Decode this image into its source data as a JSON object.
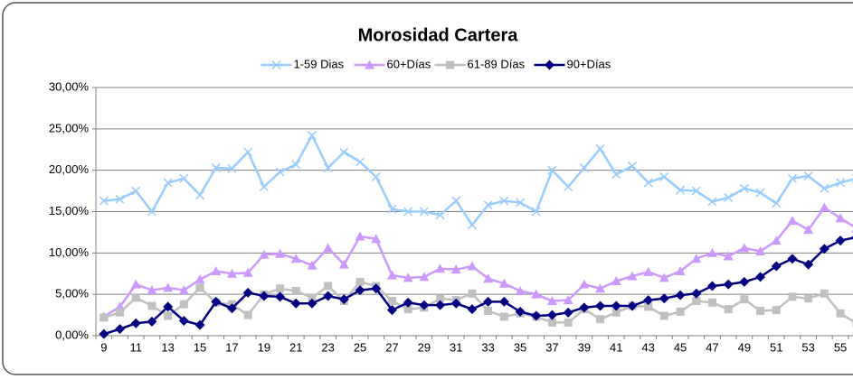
{
  "chart_data": {
    "type": "line",
    "title": "Morosidad Cartera",
    "categories": [
      "9",
      null,
      "11",
      null,
      "13",
      null,
      "15",
      null,
      "17",
      null,
      "19",
      null,
      "21",
      null,
      "23",
      null,
      "25",
      null,
      "27",
      null,
      "29",
      null,
      "31",
      null,
      "33",
      null,
      "35",
      null,
      "37",
      null,
      "39",
      null,
      "41",
      null,
      "43",
      null,
      "45",
      null,
      "47",
      null,
      "49",
      null,
      "51",
      null,
      "53",
      null,
      "55",
      null
    ],
    "ylim": [
      0,
      30
    ],
    "yticks": [
      {
        "value": 0,
        "label": "0,00%"
      },
      {
        "value": 5,
        "label": "5,00%"
      },
      {
        "value": 10,
        "label": "10,00%"
      },
      {
        "value": 15,
        "label": "15,00%"
      },
      {
        "value": 20,
        "label": "20,00%"
      },
      {
        "value": 25,
        "label": "25,00%"
      },
      {
        "value": 30,
        "label": "30,00%"
      }
    ],
    "grid": true,
    "series": [
      {
        "name": "1-59 Dias",
        "color": "#99ccff",
        "marker": "x",
        "values": [
          16.3,
          16.5,
          17.5,
          15,
          18.5,
          19,
          17,
          20.3,
          20.2,
          22.2,
          18,
          19.8,
          20.7,
          24.2,
          20.3,
          22.2,
          21,
          19.2,
          15.3,
          15,
          15,
          14.6,
          16.3,
          13.4,
          15.8,
          16.3,
          16.1,
          15,
          20,
          18,
          20.3,
          22.6,
          19.5,
          20.5,
          18.5,
          19.2,
          17.6,
          17.5,
          16.2,
          16.7,
          17.8,
          17.3,
          16,
          19,
          19.3,
          17.8,
          18.5,
          19
        ]
      },
      {
        "name": "60+Días",
        "color": "#cc99ff",
        "marker": "triangle",
        "values": [
          2.3,
          3.5,
          6.2,
          5.5,
          5.8,
          5.5,
          6.8,
          7.8,
          7.5,
          7.6,
          9.8,
          9.9,
          9.3,
          8.5,
          10.6,
          8.6,
          12,
          11.7,
          7.3,
          7,
          7.1,
          8.1,
          8,
          8.4,
          6.9,
          6.3,
          5.4,
          5,
          4.2,
          4.3,
          6.2,
          5.7,
          6.6,
          7.2,
          7.7,
          7,
          7.8,
          9.3,
          10,
          9.6,
          10.6,
          10.2,
          11.5,
          13.9,
          12.8,
          15.5,
          14.2,
          13
        ]
      },
      {
        "name": "61-89 Días",
        "color": "#c0c0c0",
        "marker": "square",
        "values": [
          2.2,
          2.8,
          4.6,
          3.6,
          2.4,
          3.8,
          5.8,
          4,
          3.8,
          2.5,
          5,
          5.7,
          5.4,
          4.6,
          6,
          4.2,
          6.5,
          6,
          4.2,
          3.2,
          3.4,
          4.5,
          4.3,
          5.1,
          3,
          2.3,
          2.7,
          2.3,
          1.6,
          1.6,
          3.2,
          2,
          2.8,
          3.6,
          3.5,
          2.4,
          2.9,
          4.2,
          4,
          3.2,
          4.4,
          3,
          3.1,
          4.7,
          4.5,
          5.1,
          2.7,
          1.5
        ]
      },
      {
        "name": "90+Días",
        "color": "#000080",
        "marker": "diamond",
        "values": [
          0.2,
          0.8,
          1.5,
          1.7,
          3.5,
          1.8,
          1.3,
          4.1,
          3.3,
          5.2,
          4.8,
          4.7,
          3.9,
          3.9,
          4.8,
          4.4,
          5.5,
          5.7,
          3.1,
          4,
          3.7,
          3.7,
          3.9,
          3.2,
          4.1,
          4.1,
          2.9,
          2.4,
          2.5,
          2.8,
          3.4,
          3.6,
          3.6,
          3.6,
          4.3,
          4.5,
          4.9,
          5.1,
          6,
          6.2,
          6.5,
          7.1,
          8.4,
          9.3,
          8.6,
          10.5,
          11.5,
          11.9
        ]
      }
    ]
  }
}
